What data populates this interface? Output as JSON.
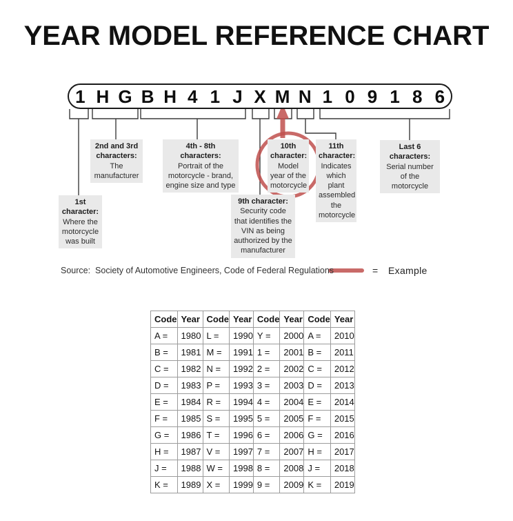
{
  "title": "YEAR MODEL REFERENCE CHART",
  "vin": {
    "characters": [
      "1",
      "H",
      "G",
      "B",
      "H",
      "4",
      "1",
      "J",
      "X",
      "M",
      "N",
      "1",
      "0",
      "9",
      "1",
      "8",
      "6"
    ]
  },
  "callouts": {
    "first": {
      "heading": "1st character:",
      "body": "Where the motorcycle was built"
    },
    "second_third": {
      "heading": "2nd and 3rd characters:",
      "body": "The manufacturer"
    },
    "fourth_eighth": {
      "heading": "4th - 8th characters:",
      "body": "Portrait of the motorcycle - brand, engine size and type"
    },
    "ninth": {
      "heading": "9th character:",
      "body": "Security code that identifies the VIN as being authorized by the manufacturer"
    },
    "tenth": {
      "heading": "10th character:",
      "body": "Model year of the motorcycle"
    },
    "eleventh": {
      "heading": "11th character:",
      "body": "Indicates which plant assembled the motorcycle"
    },
    "last_six": {
      "heading": "Last 6 characters:",
      "body": "Serial number of the motorcycle"
    }
  },
  "source": {
    "text": "Source:  Society of Automotive Engineers, Code of Federal Regulations"
  },
  "legend": {
    "equals": "=",
    "label": "Example"
  },
  "annotations": {
    "circled_vin_character": "M",
    "circled_table_entry": "M = 1991"
  },
  "year_table": {
    "headers": [
      "Code",
      "Year",
      "Code",
      "Year",
      "Code",
      "Year",
      "Code",
      "Year"
    ],
    "rows": [
      [
        "A =",
        "1980",
        "L =",
        "1990",
        "Y =",
        "2000",
        "A =",
        "2010"
      ],
      [
        "B =",
        "1981",
        "M =",
        "1991",
        "1 =",
        "2001",
        "B =",
        "2011"
      ],
      [
        "C =",
        "1982",
        "N =",
        "1992",
        "2 =",
        "2002",
        "C =",
        "2012"
      ],
      [
        "D =",
        "1983",
        "P =",
        "1993",
        "3 =",
        "2003",
        "D =",
        "2013"
      ],
      [
        "E =",
        "1984",
        "R =",
        "1994",
        "4 =",
        "2004",
        "E =",
        "2014"
      ],
      [
        "F =",
        "1985",
        "S =",
        "1995",
        "5 =",
        "2005",
        "F =",
        "2015"
      ],
      [
        "G =",
        "1986",
        "T =",
        "1996",
        "6 =",
        "2006",
        "G =",
        "2016"
      ],
      [
        "H =",
        "1987",
        "V =",
        "1997",
        "7 =",
        "2007",
        "H =",
        "2017"
      ],
      [
        "J =",
        "1988",
        "W =",
        "1998",
        "8 =",
        "2008",
        "J =",
        "2018"
      ],
      [
        "K =",
        "1989",
        "X =",
        "1999",
        "9 =",
        "2009",
        "K =",
        "2019"
      ]
    ]
  },
  "colors": {
    "accent_red": "#c0504d",
    "callout_bg": "#e9e9e9",
    "table_border": "#9b9b9b"
  }
}
